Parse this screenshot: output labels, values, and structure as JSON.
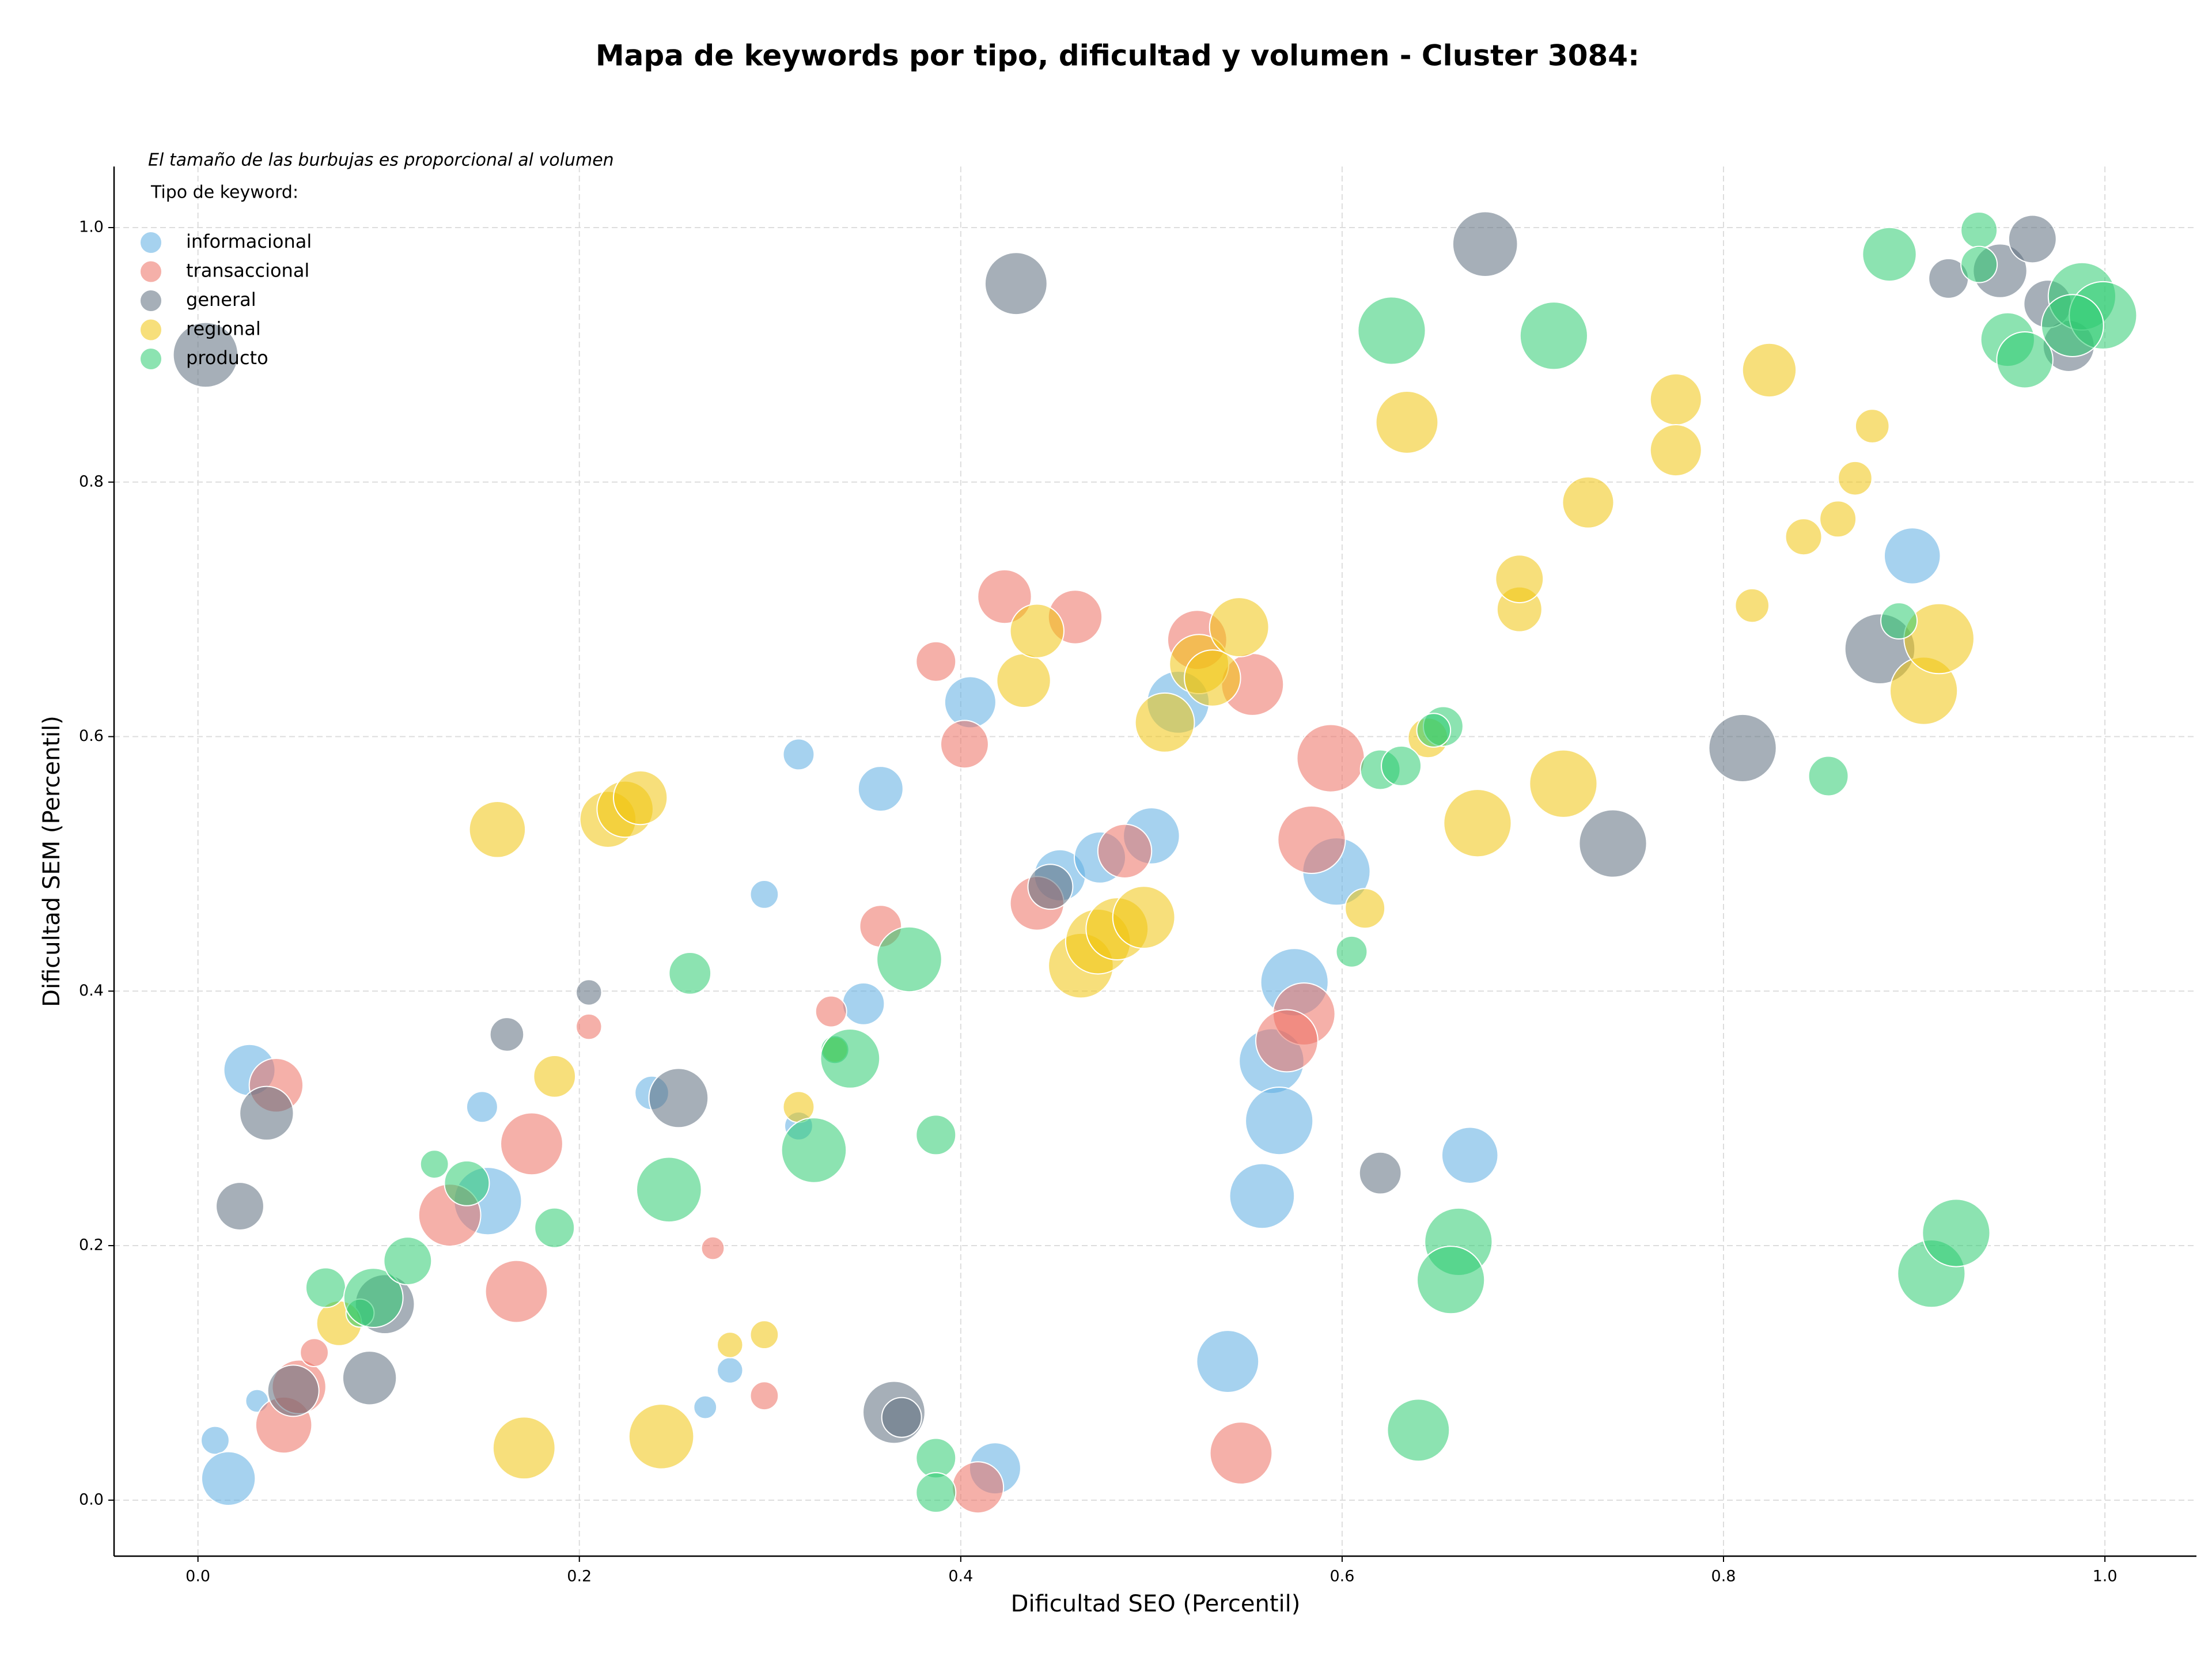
{
  "chart_data": {
    "type": "bubble",
    "title": "Mapa de keywords por tipo, dificultad y volumen - Cluster 3084:",
    "note": "El tamaño de las burbujas es proporcional al volumen",
    "legend_title": "Tipo de keyword:",
    "xlabel": "Dificultad SEO (Percentil)",
    "ylabel": "Dificultad SEM (Percentil)",
    "xlim": [
      -0.044,
      1.048
    ],
    "ylim": [
      -0.044,
      1.048
    ],
    "xticks": [
      {
        "value": 0,
        "label": "0.0"
      },
      {
        "value": 0.2,
        "label": "0.2"
      },
      {
        "value": 0.4,
        "label": "0.4"
      },
      {
        "value": 0.6,
        "label": "0.6"
      },
      {
        "value": 0.8,
        "label": "0.8"
      },
      {
        "value": 1,
        "label": "1.0"
      }
    ],
    "yticks": [
      {
        "value": 0,
        "label": "0.0"
      },
      {
        "value": 0.2,
        "label": "0.2"
      },
      {
        "value": 0.4,
        "label": "0.4"
      },
      {
        "value": 0.6,
        "label": "0.6"
      },
      {
        "value": 0.8,
        "label": "0.8"
      },
      {
        "value": 1,
        "label": "1.0"
      }
    ],
    "grid": true,
    "legend_position": "upper-left",
    "series": [
      {
        "name": "informacional",
        "color": "#5DADE2",
        "x": [
          0.027,
          0.009,
          0.016,
          0.031,
          0.149,
          0.152,
          0.238,
          0.315,
          0.297,
          0.279,
          0.266,
          0.315,
          0.358,
          0.349,
          0.405,
          0.418,
          0.452,
          0.473,
          0.5,
          0.514,
          0.575,
          0.563,
          0.567,
          0.558,
          0.54,
          0.597,
          0.667,
          0.899
        ],
        "values": [
          0.338,
          0.047,
          0.017,
          0.078,
          0.309,
          0.235,
          0.32,
          0.586,
          0.476,
          0.102,
          0.073,
          0.294,
          0.559,
          0.39,
          0.627,
          0.025,
          0.491,
          0.505,
          0.522,
          0.627,
          0.407,
          0.345,
          0.298,
          0.239,
          0.109,
          0.494,
          0.271,
          0.742
        ],
        "sizes": [
          300,
          90,
          330,
          60,
          110,
          520,
          130,
          110,
          90,
          75,
          60,
          90,
          230,
          200,
          300,
          300,
          300,
          300,
          360,
          440,
          520,
          480,
          520,
          480,
          440,
          520,
          360,
          360
        ]
      },
      {
        "name": "transaccional",
        "color": "#EC7063",
        "x": [
          0.041,
          0.045,
          0.053,
          0.061,
          0.132,
          0.167,
          0.175,
          0.205,
          0.27,
          0.297,
          0.332,
          0.358,
          0.387,
          0.402,
          0.409,
          0.423,
          0.44,
          0.46,
          0.486,
          0.524,
          0.553,
          0.594,
          0.584,
          0.58,
          0.571,
          0.547
        ],
        "values": [
          0.326,
          0.059,
          0.089,
          0.116,
          0.224,
          0.164,
          0.28,
          0.372,
          0.198,
          0.082,
          0.384,
          0.451,
          0.659,
          0.594,
          0.01,
          0.71,
          0.469,
          0.694,
          0.51,
          0.676,
          0.641,
          0.583,
          0.519,
          0.382,
          0.361,
          0.037
        ],
        "sizes": [
          330,
          360,
          330,
          90,
          440,
          440,
          440,
          75,
          60,
          90,
          110,
          200,
          180,
          260,
          300,
          330,
          330,
          330,
          330,
          400,
          440,
          520,
          520,
          440,
          440,
          440
        ]
      },
      {
        "name": "general",
        "color": "#5D6D7E",
        "x": [
          0.004,
          0.022,
          0.036,
          0.05,
          0.09,
          0.098,
          0.162,
          0.205,
          0.252,
          0.365,
          0.369,
          0.429,
          0.447,
          0.62,
          0.675,
          0.742,
          0.81,
          0.882,
          0.918,
          0.945,
          0.962,
          0.981,
          0.97
        ],
        "values": [
          0.9,
          0.231,
          0.304,
          0.086,
          0.096,
          0.154,
          0.366,
          0.399,
          0.316,
          0.069,
          0.065,
          0.956,
          0.482,
          0.257,
          0.987,
          0.516,
          0.591,
          0.669,
          0.96,
          0.966,
          0.991,
          0.907,
          0.94
        ],
        "sizes": [
          480,
          260,
          330,
          300,
          330,
          400,
          130,
          75,
          400,
          440,
          180,
          440,
          230,
          200,
          480,
          520,
          520,
          560,
          180,
          330,
          260,
          300,
          260
        ]
      },
      {
        "name": "regional",
        "color": "#F1C40F",
        "x": [
          0.074,
          0.157,
          0.171,
          0.187,
          0.215,
          0.224,
          0.232,
          0.243,
          0.279,
          0.297,
          0.315,
          0.334,
          0.433,
          0.44,
          0.463,
          0.472,
          0.482,
          0.496,
          0.507,
          0.525,
          0.532,
          0.546,
          0.612,
          0.634,
          0.645,
          0.671,
          0.693,
          0.693,
          0.716,
          0.729,
          0.775,
          0.775,
          0.815,
          0.824,
          0.842,
          0.86,
          0.869,
          0.878,
          0.905,
          0.913
        ],
        "values": [
          0.139,
          0.527,
          0.041,
          0.333,
          0.535,
          0.543,
          0.552,
          0.05,
          0.122,
          0.13,
          0.309,
          0.354,
          0.644,
          0.683,
          0.42,
          0.439,
          0.449,
          0.458,
          0.611,
          0.657,
          0.646,
          0.686,
          0.465,
          0.847,
          0.599,
          0.532,
          0.7,
          0.724,
          0.563,
          0.784,
          0.865,
          0.825,
          0.703,
          0.888,
          0.757,
          0.771,
          0.803,
          0.844,
          0.636,
          0.677
        ],
        "sizes": [
          230,
          360,
          440,
          200,
          360,
          360,
          330,
          480,
          75,
          90,
          110,
          75,
          330,
          330,
          480,
          480,
          440,
          440,
          400,
          400,
          360,
          400,
          180,
          440,
          180,
          520,
          230,
          260,
          520,
          300,
          300,
          300,
          130,
          330,
          150,
          150,
          130,
          130,
          520,
          560
        ]
      },
      {
        "name": "producto",
        "color": "#2ECC71",
        "x": [
          0.067,
          0.085,
          0.092,
          0.11,
          0.124,
          0.141,
          0.187,
          0.247,
          0.258,
          0.323,
          0.334,
          0.342,
          0.373,
          0.387,
          0.387,
          0.387,
          0.605,
          0.62,
          0.631,
          0.626,
          0.64,
          0.653,
          0.648,
          0.661,
          0.657,
          0.711,
          0.855,
          0.887,
          0.892,
          0.909,
          0.922,
          0.934,
          0.934,
          0.949,
          0.958,
          0.988,
          0.999,
          0.983
        ],
        "values": [
          0.167,
          0.147,
          0.159,
          0.188,
          0.264,
          0.249,
          0.214,
          0.244,
          0.414,
          0.275,
          0.354,
          0.347,
          0.425,
          0.287,
          0.033,
          0.006,
          0.431,
          0.574,
          0.577,
          0.919,
          0.055,
          0.608,
          0.605,
          0.203,
          0.173,
          0.915,
          0.569,
          0.979,
          0.691,
          0.178,
          0.21,
          0.998,
          0.971,
          0.912,
          0.896,
          0.946,
          0.931,
          0.923
        ],
        "sizes": [
          180,
          90,
          400,
          260,
          90,
          230,
          180,
          480,
          200,
          480,
          90,
          400,
          480,
          180,
          180,
          180,
          110,
          180,
          180,
          520,
          440,
          180,
          130,
          520,
          520,
          520,
          180,
          330,
          150,
          520,
          520,
          150,
          150,
          330,
          360,
          520,
          520,
          440
        ]
      }
    ]
  }
}
